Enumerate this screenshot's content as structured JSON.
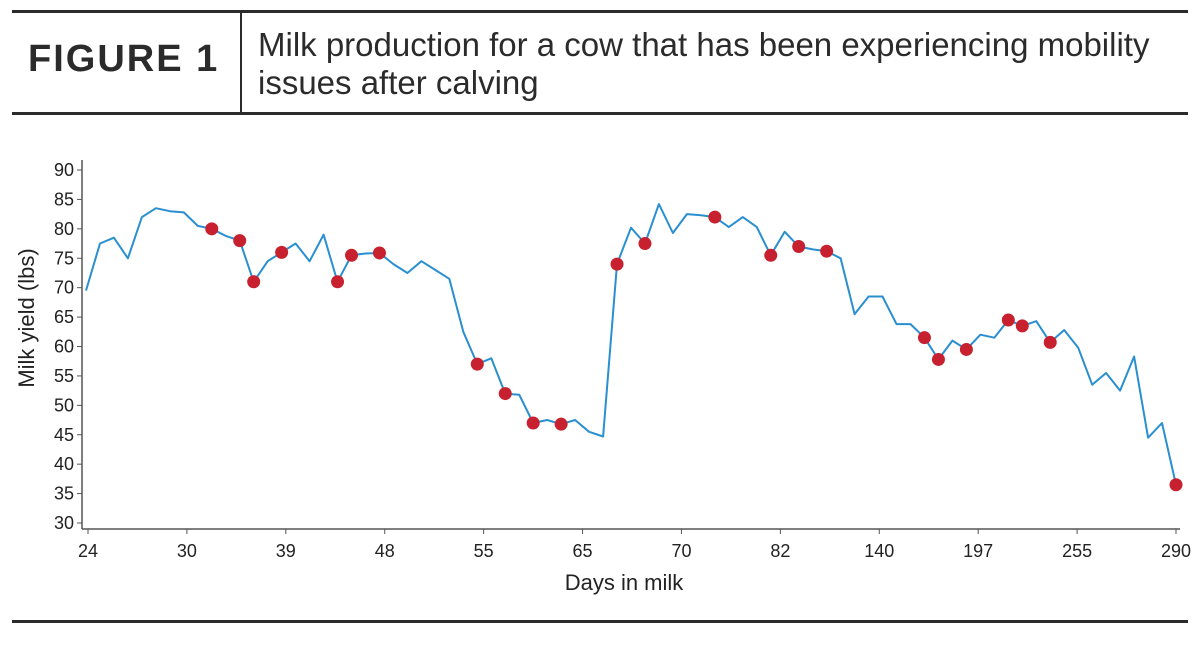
{
  "header": {
    "figure_label": "FIGURE 1",
    "title": "Milk production for a cow that has been experiencing mobility issues after calving"
  },
  "colors": {
    "line": "#2a8fd0",
    "marker": "#c7202f",
    "axis": "#555555",
    "rule": "#2b2b2b"
  },
  "chart_data": {
    "type": "line",
    "title": "Milk production for a cow that has been experiencing mobility issues after calving",
    "xlabel": "Days in milk",
    "ylabel": "Milk yield (lbs)",
    "ylim": [
      30,
      90
    ],
    "yticks": [
      30,
      35,
      40,
      45,
      50,
      55,
      60,
      65,
      70,
      75,
      80,
      85,
      90
    ],
    "xticks": [
      "24",
      "30",
      "39",
      "48",
      "55",
      "65",
      "70",
      "82",
      "140",
      "197",
      "255",
      "290"
    ],
    "grid": false,
    "legend": "none",
    "x_axis_note": "categorical daily records; tick labels printed at evenly spaced positions",
    "series": [
      {
        "values": [
          69.5,
          77.5,
          78.5,
          75,
          82,
          83.5,
          83,
          82.8,
          80.5,
          80,
          78.8,
          78,
          71,
          74.5,
          76,
          77.5,
          74.5,
          79,
          71,
          75.5,
          75.8,
          75.9,
          74,
          72.5,
          74.5,
          73,
          71.5,
          62.5,
          57,
          58,
          52,
          51.8,
          47,
          47.5,
          46.8,
          47.5,
          45.5,
          44.7,
          74,
          80.2,
          77.5,
          84.2,
          79.3,
          82.5,
          82.3,
          82,
          80.3,
          82,
          80.3,
          75.5,
          79.5,
          77,
          76.5,
          76.2,
          75,
          65.5,
          68.5,
          68.5,
          63.8,
          63.8,
          61.5,
          57.8,
          61,
          59.5,
          62,
          61.5,
          64.5,
          63.5,
          64.3,
          60.7,
          62.8,
          59.8,
          53.5,
          55.5,
          52.5,
          58.3,
          44.5,
          47,
          36.5
        ]
      }
    ],
    "marked_points": [
      9,
      11,
      12,
      14,
      18,
      19,
      21,
      28,
      30,
      32,
      34,
      38,
      40,
      45,
      49,
      51,
      53,
      60,
      61,
      63,
      66,
      67,
      69,
      78
    ]
  }
}
